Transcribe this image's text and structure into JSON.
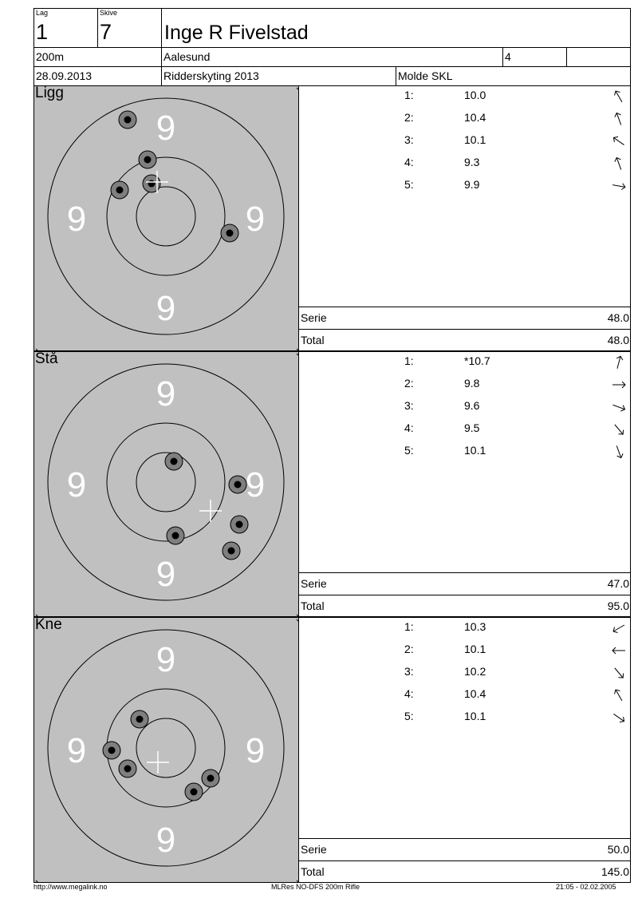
{
  "header": {
    "lag_label": "Lag",
    "lag_value": "1",
    "skive_label": "Skive",
    "skive_value": "7",
    "name": "Inge R Fivelstad",
    "distance": "200m",
    "club": "Aalesund",
    "class": "4",
    "date": "28.09.2013",
    "event": "Ridderskyting 2013",
    "organizer": "Molde SKL"
  },
  "stages": [
    {
      "label": "Ligg",
      "ring_labels": [
        "9",
        "9",
        "9",
        "9"
      ],
      "shots": [
        {
          "num": "1:",
          "value": "10.0",
          "dir_deg": -30
        },
        {
          "num": "2:",
          "value": "10.4",
          "dir_deg": -20
        },
        {
          "num": "3:",
          "value": "10.1",
          "dir_deg": -55
        },
        {
          "num": "4:",
          "value": "9.3",
          "dir_deg": -20
        },
        {
          "num": "5:",
          "value": "9.9",
          "dir_deg": 100
        }
      ],
      "serie_label": "Serie",
      "serie_value": "48.0",
      "total_label": "Total",
      "total_value": "48.0"
    },
    {
      "label": "Stå",
      "ring_labels": [
        "9",
        "9",
        "9",
        "9"
      ],
      "shots": [
        {
          "num": "1:",
          "value": "*10.7",
          "dir_deg": 15
        },
        {
          "num": "2:",
          "value": "9.8",
          "dir_deg": 90
        },
        {
          "num": "3:",
          "value": "9.6",
          "dir_deg": 110
        },
        {
          "num": "4:",
          "value": "9.5",
          "dir_deg": 140
        },
        {
          "num": "5:",
          "value": "10.1",
          "dir_deg": 160
        }
      ],
      "serie_label": "Serie",
      "serie_value": "47.0",
      "total_label": "Total",
      "total_value": "95.0"
    },
    {
      "label": "Kne",
      "ring_labels": [
        "9",
        "9",
        "9",
        "9"
      ],
      "shots": [
        {
          "num": "1:",
          "value": "10.3",
          "dir_deg": -120
        },
        {
          "num": "2:",
          "value": "10.1",
          "dir_deg": -90
        },
        {
          "num": "3:",
          "value": "10.2",
          "dir_deg": 140
        },
        {
          "num": "4:",
          "value": "10.4",
          "dir_deg": -30
        },
        {
          "num": "5:",
          "value": "10.1",
          "dir_deg": 125
        }
      ],
      "serie_label": "Serie",
      "serie_value": "50.0",
      "total_label": "Total",
      "total_value": "145.0"
    }
  ],
  "footer": {
    "left": "http://www.megalink.no",
    "center": "MLRes NO-DFS 200m Rifle",
    "right": "21:05 - 02.02.2005"
  }
}
